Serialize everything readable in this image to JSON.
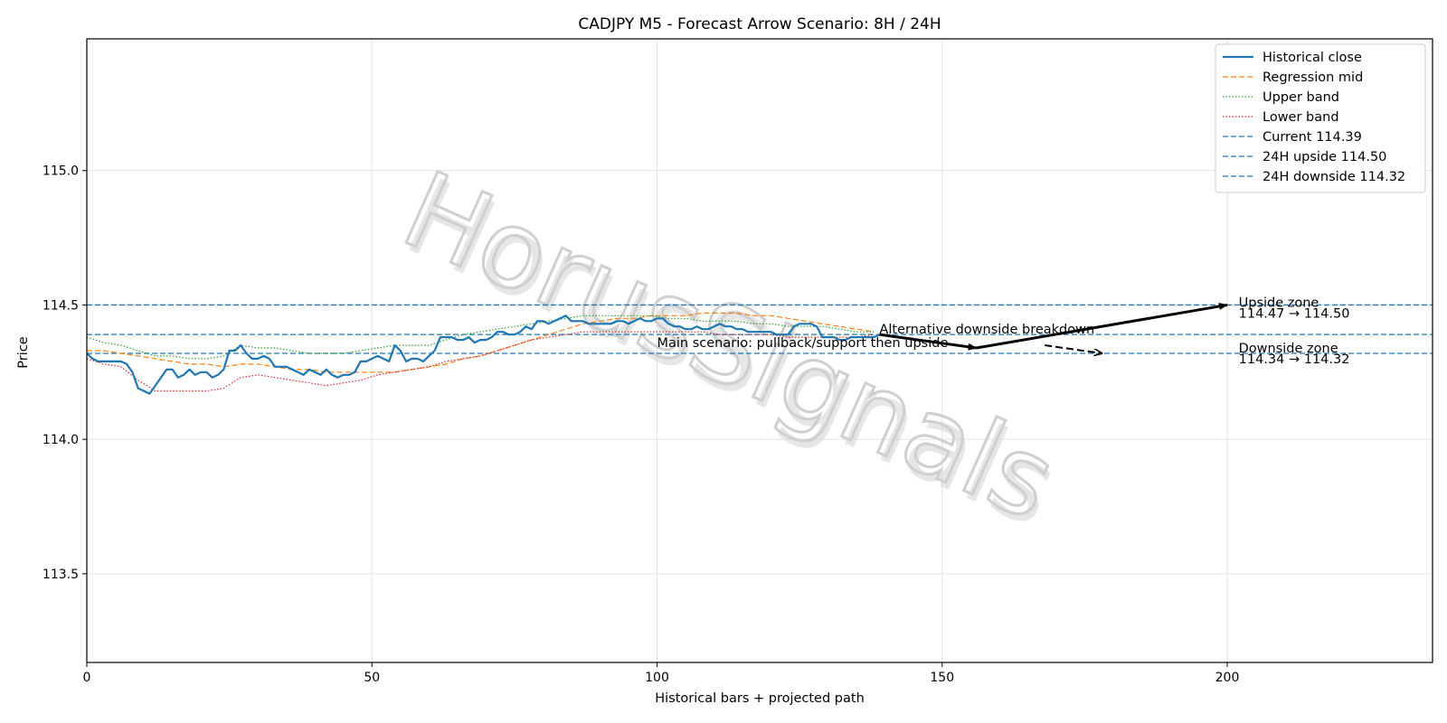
{
  "chart_data": {
    "type": "line",
    "title": "CADJPY M5 - Forecast Arrow Scenario: 8H / 24H",
    "xlabel": "Historical bars + projected path",
    "ylabel": "Price",
    "xlim": [
      0,
      236
    ],
    "ylim": [
      113.17,
      115.49
    ],
    "xticks": [
      0,
      50,
      100,
      150,
      200
    ],
    "xtick_labels": [
      "0",
      "50",
      "100",
      "150",
      "200"
    ],
    "yticks": [
      113.5,
      114.0,
      114.5,
      115.0
    ],
    "ytick_labels": [
      "113.5",
      "114.0",
      "114.5",
      "115.0"
    ],
    "grid": true,
    "legend_position": "top-right",
    "colors": {
      "blue": "#1f77b4",
      "orange": "#ff7f0e",
      "green": "#2ca02c",
      "red": "#d62728",
      "black": "#000000"
    },
    "watermark": "HorusSignals",
    "series": [
      {
        "name": "Historical close",
        "style": "solid",
        "color": "#1f77b4",
        "x": [
          0,
          1,
          2,
          3,
          4,
          5,
          6,
          7,
          8,
          9,
          10,
          11,
          12,
          13,
          14,
          15,
          16,
          17,
          18,
          19,
          20,
          21,
          22,
          23,
          24,
          25,
          26,
          27,
          28,
          29,
          30,
          31,
          32,
          33,
          34,
          35,
          36,
          37,
          38,
          39,
          40,
          41,
          42,
          43,
          44,
          45,
          46,
          47,
          48,
          49,
          50,
          51,
          52,
          53,
          54,
          55,
          56,
          57,
          58,
          59,
          60,
          61,
          62,
          63,
          64,
          65,
          66,
          67,
          68,
          69,
          70,
          71,
          72,
          73,
          74,
          75,
          76,
          77,
          78,
          79,
          80,
          81,
          82,
          83,
          84,
          85,
          86,
          87,
          88,
          89,
          90,
          91,
          92,
          93,
          94,
          95,
          96,
          97,
          98,
          99,
          100,
          101,
          102,
          103,
          104,
          105,
          106,
          107,
          108,
          109,
          110,
          111,
          112,
          113,
          114,
          115,
          116,
          117,
          118,
          119,
          120,
          121,
          122,
          123,
          124,
          125,
          126,
          127,
          128,
          129,
          130,
          131,
          132,
          133,
          134,
          135,
          136,
          137,
          138,
          139
        ],
        "values": [
          114.32,
          114.3,
          114.29,
          114.29,
          114.29,
          114.29,
          114.29,
          114.28,
          114.25,
          114.19,
          114.18,
          114.17,
          114.2,
          114.23,
          114.26,
          114.26,
          114.23,
          114.24,
          114.26,
          114.24,
          114.25,
          114.25,
          114.23,
          114.24,
          114.26,
          114.33,
          114.33,
          114.35,
          114.32,
          114.3,
          114.3,
          114.31,
          114.3,
          114.27,
          114.27,
          114.27,
          114.26,
          114.25,
          114.24,
          114.26,
          114.25,
          114.24,
          114.26,
          114.24,
          114.23,
          114.24,
          114.24,
          114.25,
          114.29,
          114.29,
          114.3,
          114.31,
          114.3,
          114.29,
          114.35,
          114.33,
          114.29,
          114.3,
          114.3,
          114.29,
          114.31,
          114.33,
          114.38,
          114.38,
          114.38,
          114.37,
          114.37,
          114.38,
          114.36,
          114.37,
          114.37,
          114.38,
          114.4,
          114.4,
          114.39,
          114.39,
          114.4,
          114.42,
          114.41,
          114.44,
          114.44,
          114.43,
          114.44,
          114.45,
          114.46,
          114.44,
          114.44,
          114.44,
          114.43,
          114.43,
          114.43,
          114.43,
          114.43,
          114.44,
          114.44,
          114.43,
          114.44,
          114.45,
          114.44,
          114.44,
          114.45,
          114.45,
          114.43,
          114.42,
          114.42,
          114.41,
          114.41,
          114.42,
          114.41,
          114.41,
          114.42,
          114.43,
          114.42,
          114.42,
          114.41,
          114.41,
          114.4,
          114.4,
          114.4,
          114.4,
          114.4,
          114.39,
          114.39,
          114.39,
          114.42,
          114.43,
          114.43,
          114.43,
          114.42,
          114.38,
          114.38,
          114.38,
          114.37,
          114.37,
          114.38,
          114.38,
          114.38,
          114.38,
          114.38,
          114.39
        ]
      },
      {
        "name": "Regression mid",
        "style": "dashed",
        "color": "#ff7f0e",
        "x": [
          0,
          3,
          6,
          9,
          12,
          15,
          18,
          21,
          24,
          27,
          30,
          33,
          36,
          39,
          42,
          45,
          48,
          51,
          54,
          57,
          60,
          63,
          66,
          69,
          72,
          75,
          78,
          81,
          84,
          87,
          90,
          93,
          96,
          99,
          102,
          105,
          108,
          111,
          114,
          117,
          120,
          123,
          126,
          129,
          132,
          135,
          138
        ],
        "values": [
          114.33,
          114.33,
          114.32,
          114.31,
          114.3,
          114.29,
          114.28,
          114.28,
          114.27,
          114.28,
          114.28,
          114.27,
          114.26,
          114.26,
          114.25,
          114.25,
          114.25,
          114.25,
          114.25,
          114.26,
          114.27,
          114.28,
          114.3,
          114.31,
          114.33,
          114.35,
          114.37,
          114.39,
          114.41,
          114.43,
          114.44,
          114.45,
          114.45,
          114.46,
          114.46,
          114.46,
          114.47,
          114.47,
          114.47,
          114.46,
          114.46,
          114.45,
          114.44,
          114.43,
          114.42,
          114.41,
          114.4
        ]
      },
      {
        "name": "Upper band",
        "style": "dotted",
        "color": "#2ca02c",
        "x": [
          0,
          3,
          6,
          9,
          12,
          15,
          18,
          21,
          24,
          27,
          30,
          33,
          36,
          39,
          42,
          45,
          48,
          51,
          54,
          57,
          60,
          63,
          66,
          69,
          72,
          75,
          78,
          81,
          84,
          87,
          90,
          93,
          96,
          99,
          102,
          105,
          108,
          111,
          114,
          117,
          120,
          123,
          126,
          129,
          132,
          135,
          138
        ],
        "values": [
          114.38,
          114.36,
          114.35,
          114.33,
          114.31,
          114.31,
          114.3,
          114.3,
          114.31,
          114.35,
          114.34,
          114.34,
          114.33,
          114.32,
          114.32,
          114.32,
          114.33,
          114.34,
          114.35,
          114.35,
          114.35,
          114.37,
          114.39,
          114.4,
          114.41,
          114.42,
          114.43,
          114.44,
          114.45,
          114.46,
          114.46,
          114.46,
          114.46,
          114.46,
          114.45,
          114.45,
          114.44,
          114.44,
          114.44,
          114.43,
          114.43,
          114.42,
          114.42,
          114.42,
          114.41,
          114.4,
          114.4
        ]
      },
      {
        "name": "Lower band",
        "style": "dotted",
        "color": "#d62728",
        "x": [
          0,
          3,
          6,
          9,
          12,
          15,
          18,
          21,
          24,
          27,
          30,
          33,
          36,
          39,
          42,
          45,
          48,
          51,
          54,
          57,
          60,
          63,
          66,
          69,
          72,
          75,
          78,
          81,
          84,
          87,
          90,
          93,
          96,
          99,
          102,
          105,
          108,
          111,
          114,
          117,
          120,
          123,
          126,
          129,
          132,
          135,
          138
        ],
        "values": [
          114.3,
          114.28,
          114.27,
          114.22,
          114.18,
          114.18,
          114.18,
          114.18,
          114.19,
          114.23,
          114.24,
          114.23,
          114.22,
          114.21,
          114.2,
          114.21,
          114.22,
          114.24,
          114.25,
          114.26,
          114.27,
          114.29,
          114.3,
          114.31,
          114.33,
          114.35,
          114.37,
          114.38,
          114.39,
          114.4,
          114.4,
          114.4,
          114.4,
          114.4,
          114.4,
          114.4,
          114.4,
          114.39,
          114.39,
          114.39,
          114.39,
          114.38,
          114.38,
          114.38,
          114.38,
          114.38,
          114.39
        ]
      }
    ],
    "hlines": [
      {
        "name": "Current 114.39",
        "y": 114.39,
        "color": "#1f77b4",
        "style": "dashed"
      },
      {
        "name": "24H upside 114.50",
        "y": 114.5,
        "color": "#1f77b4",
        "style": "dashed"
      },
      {
        "name": "24H downside 114.32",
        "y": 114.32,
        "color": "#1f77b4",
        "style": "dashed"
      }
    ],
    "arrows": [
      {
        "from": [
          139,
          114.39
        ],
        "to": [
          156,
          114.34
        ],
        "style": "solid"
      },
      {
        "from": [
          156,
          114.34
        ],
        "to": [
          200,
          114.5
        ],
        "style": "solid"
      },
      {
        "from": [
          168,
          114.35
        ],
        "to": [
          178,
          114.32
        ],
        "style": "dashed"
      }
    ],
    "annotations": [
      {
        "text": "Main scenario: pullback/support then upside",
        "x": 100,
        "y": 114.36
      },
      {
        "text": "Alternative downside breakdown",
        "x": 139,
        "y": 114.41
      },
      {
        "text": "Upside zone",
        "x": 202,
        "y": 114.51
      },
      {
        "text": "114.47 → 114.50",
        "x": 202,
        "y": 114.47
      },
      {
        "text": "Downside zone",
        "x": 202,
        "y": 114.34
      },
      {
        "text": "114.34 → 114.32",
        "x": 202,
        "y": 114.3
      }
    ]
  }
}
